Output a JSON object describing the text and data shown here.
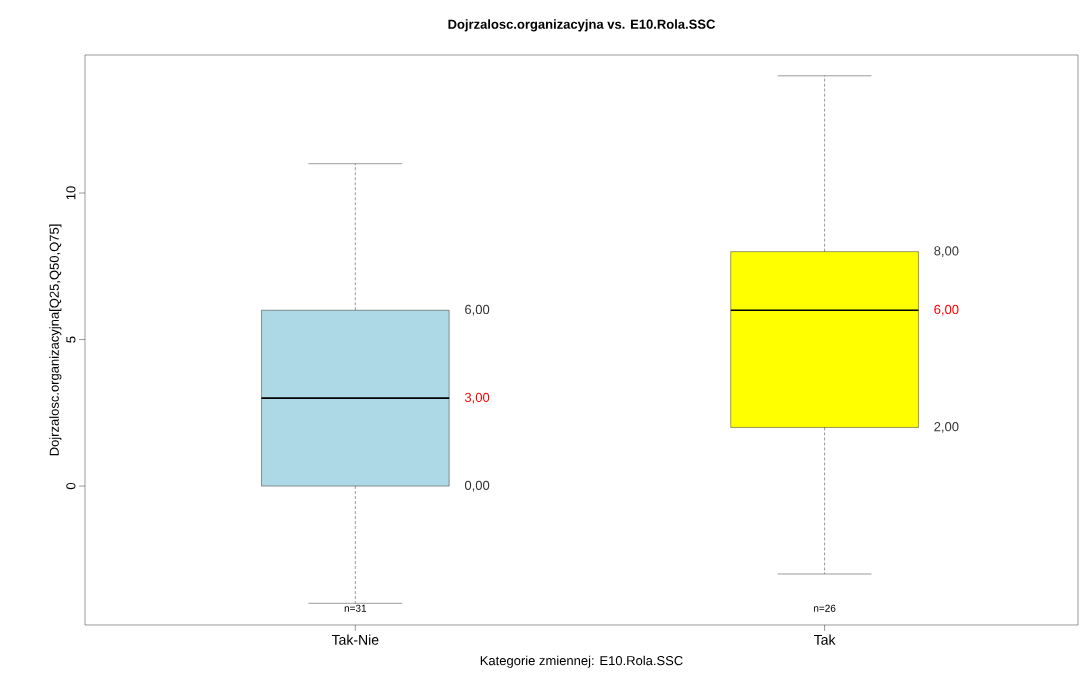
{
  "chart_data": {
    "type": "box",
    "title": "Dojrzalosc.organizacyjna vs. E10.Rola.SSC",
    "xlabel": "Kategorie zmiennej: E10.Rola.SSC",
    "ylabel": "Dojrzalosc.organizacyjna[Q25,Q50,Q75]",
    "categories": [
      "Tak-Nie",
      "Tak"
    ],
    "colors": [
      "#add8e6",
      "#ffff00"
    ],
    "boxes": [
      {
        "low": -4,
        "q1": 0,
        "median": 3,
        "q3": 6,
        "high": 11
      },
      {
        "low": -3,
        "q1": 2,
        "median": 6,
        "q3": 8,
        "high": 14
      }
    ],
    "ylim": [
      -4.74,
      14.71
    ],
    "yticks": [
      0,
      5,
      10
    ],
    "grid": false,
    "annotations": [
      "6,00",
      "3,00",
      "0,00",
      "8,00",
      "6,00",
      "2,00",
      "n=31",
      "n=26"
    ]
  }
}
